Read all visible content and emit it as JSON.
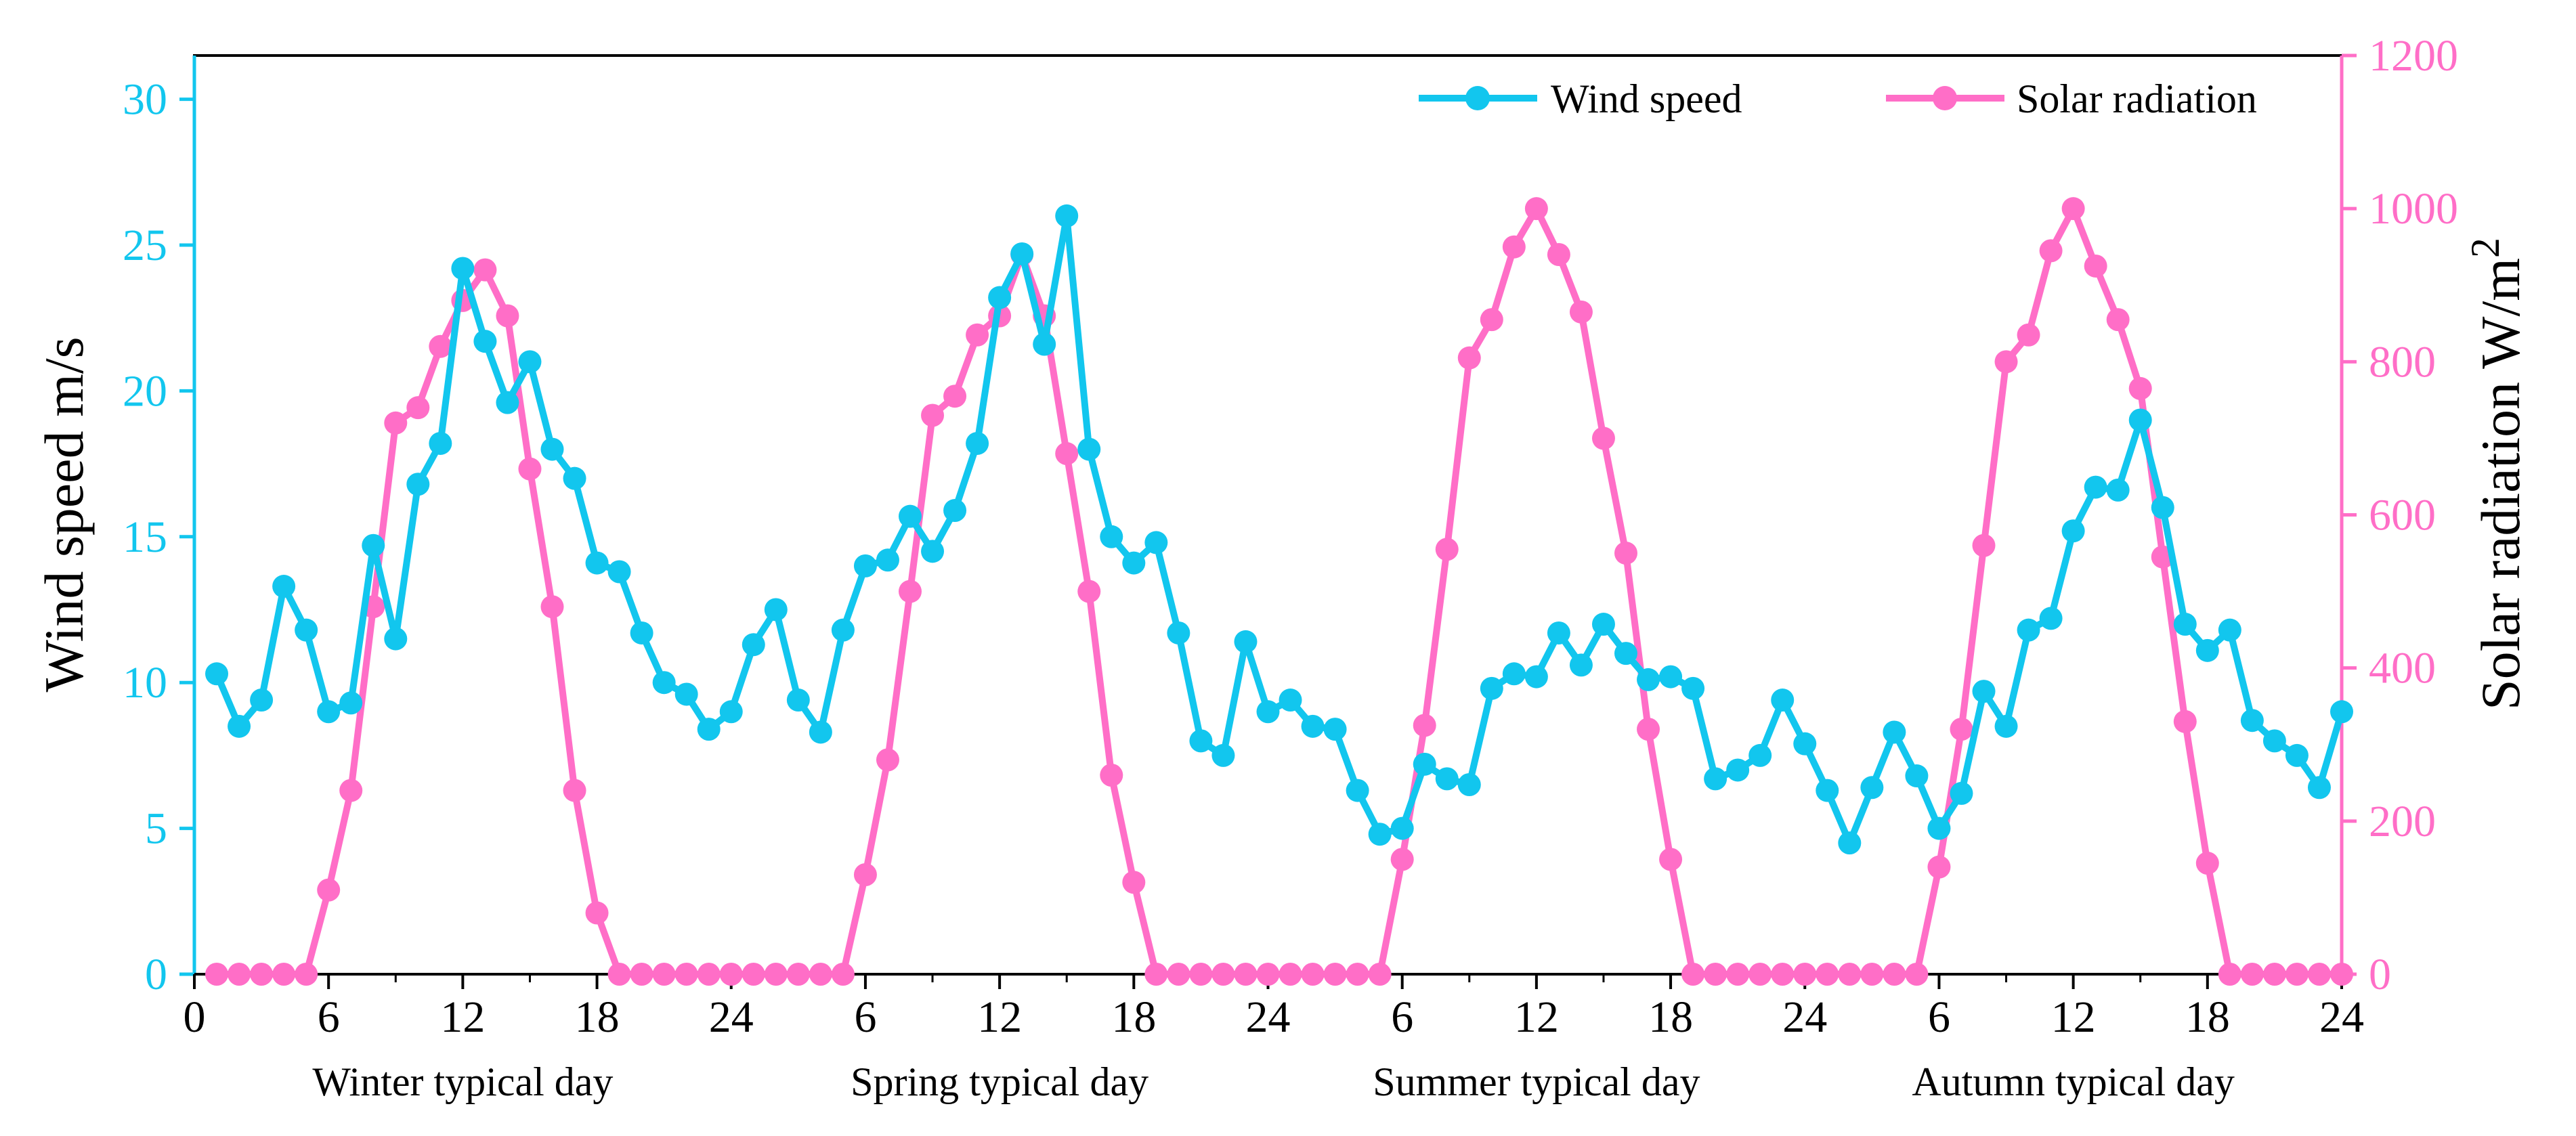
{
  "chart_data": {
    "type": "line",
    "title": "",
    "xlabel": "",
    "ylabel": "Wind speed m/s",
    "y2label": "Solar radiation W/m",
    "y2label_superscript": "2",
    "x": [
      1,
      2,
      3,
      4,
      5,
      6,
      7,
      8,
      9,
      10,
      11,
      12,
      13,
      14,
      15,
      16,
      17,
      18,
      19,
      20,
      21,
      22,
      23,
      24,
      25,
      26,
      27,
      28,
      29,
      30,
      31,
      32,
      33,
      34,
      35,
      36,
      37,
      38,
      39,
      40,
      41,
      42,
      43,
      44,
      45,
      46,
      47,
      48,
      49,
      50,
      51,
      52,
      53,
      54,
      55,
      56,
      57,
      58,
      59,
      60,
      61,
      62,
      63,
      64,
      65,
      66,
      67,
      68,
      69,
      70,
      71,
      72,
      73,
      74,
      75,
      76,
      77,
      78,
      79,
      80,
      81,
      82,
      83,
      84,
      85,
      86,
      87,
      88,
      89,
      90,
      91,
      92,
      93,
      94,
      95,
      96
    ],
    "xlim": [
      0,
      96
    ],
    "ylim": [
      0,
      31.5
    ],
    "y2lim": [
      0,
      1200
    ],
    "x_ticks": [
      0,
      6,
      12,
      18,
      24,
      30,
      36,
      42,
      48,
      54,
      60,
      66,
      72,
      78,
      84,
      90,
      96
    ],
    "x_tick_labels": [
      "0",
      "6",
      "12",
      "18",
      "24",
      "6",
      "12",
      "18",
      "24",
      "6",
      "12",
      "18",
      "24",
      "6",
      "12",
      "18",
      "24"
    ],
    "y_ticks": [
      0,
      5,
      10,
      15,
      20,
      25,
      30
    ],
    "y_tick_labels": [
      "0",
      "5",
      "10",
      "15",
      "20",
      "25",
      "30"
    ],
    "y2_ticks": [
      0,
      200,
      400,
      600,
      800,
      1000,
      1200
    ],
    "y2_tick_labels": [
      "0",
      "200",
      "400",
      "600",
      "800",
      "1000",
      "1200"
    ],
    "segments": [
      "Winter typical day",
      "Spring typical day",
      "Summer typical day",
      "Autumn typical day"
    ],
    "legend_position": "top-right",
    "grid": false,
    "series": [
      {
        "name": "Wind speed",
        "axis": "left",
        "color": "#12C6EE",
        "values": [
          10.3,
          8.5,
          9.4,
          13.3,
          11.8,
          9.0,
          9.3,
          14.7,
          11.5,
          16.8,
          18.2,
          24.2,
          21.7,
          19.6,
          21.0,
          18.0,
          17.0,
          14.1,
          13.8,
          11.7,
          10.0,
          9.6,
          8.4,
          9.0,
          11.3,
          12.5,
          9.4,
          8.3,
          11.8,
          14.0,
          14.2,
          15.7,
          14.5,
          15.9,
          18.2,
          23.2,
          24.7,
          21.6,
          26.0,
          18.0,
          15.0,
          14.1,
          14.8,
          11.7,
          8.0,
          7.5,
          11.4,
          9.0,
          9.4,
          8.5,
          8.4,
          6.3,
          4.8,
          5.0,
          7.2,
          6.7,
          6.5,
          9.8,
          10.3,
          10.2,
          11.7,
          10.6,
          12.0,
          11.0,
          10.1,
          10.2,
          9.8,
          6.7,
          7.0,
          7.5,
          9.4,
          7.9,
          6.3,
          4.5,
          6.4,
          8.3,
          6.8,
          5.0,
          6.2,
          9.7,
          8.5,
          11.8,
          12.2,
          15.2,
          16.7,
          16.6,
          19.0,
          16.0,
          12.0,
          11.1,
          11.8,
          8.7,
          8.0,
          7.5,
          6.4,
          9.0
        ]
      },
      {
        "name": "Solar radiation",
        "axis": "right",
        "color": "#FF6EC7",
        "values": [
          0,
          0,
          0,
          0,
          0,
          110,
          240,
          480,
          720,
          740,
          820,
          880,
          920,
          860,
          660,
          480,
          240,
          80,
          0,
          0,
          0,
          0,
          0,
          0,
          0,
          0,
          0,
          0,
          0,
          130,
          280,
          500,
          730,
          755,
          835,
          860,
          940,
          860,
          680,
          500,
          260,
          120,
          0,
          0,
          0,
          0,
          0,
          0,
          0,
          0,
          0,
          0,
          0,
          150,
          325,
          555,
          805,
          855,
          950,
          1000,
          940,
          865,
          700,
          550,
          320,
          150,
          0,
          0,
          0,
          0,
          0,
          0,
          0,
          0,
          0,
          0,
          0,
          140,
          320,
          560,
          800,
          835,
          945,
          1000,
          925,
          855,
          765,
          545,
          330,
          145,
          0,
          0,
          0,
          0,
          0,
          0
        ]
      }
    ]
  }
}
